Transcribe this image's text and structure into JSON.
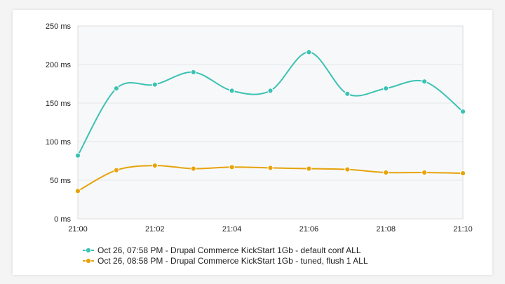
{
  "chart_data": {
    "type": "line",
    "title": "",
    "xlabel": "",
    "ylabel": "",
    "x": [
      "21:00",
      "21:01",
      "21:02",
      "21:03",
      "21:04",
      "21:05",
      "21:06",
      "21:07",
      "21:08",
      "21:09",
      "21:10"
    ],
    "x_ticks": [
      "21:00",
      "21:02",
      "21:04",
      "21:06",
      "21:08",
      "21:10"
    ],
    "ylim": [
      0,
      250
    ],
    "y_ticks": [
      "0 ms",
      "50 ms",
      "100 ms",
      "150 ms",
      "200 ms",
      "250 ms"
    ],
    "grid": true,
    "legend_position": "bottom",
    "series": [
      {
        "name": "Oct 26, 07:58 PM - Drupal Commerce KickStart 1Gb - default conf ALL",
        "color": "#3cc2b4",
        "values": [
          82,
          169,
          174,
          190,
          166,
          166,
          216,
          162,
          169,
          178,
          139
        ]
      },
      {
        "name": "Oct 26, 08:58 PM - Drupal Commerce KickStart 1Gb - tuned, flush 1 ALL",
        "color": "#e6a30b",
        "values": [
          36,
          63,
          69,
          65,
          67,
          66,
          65,
          64,
          60,
          60,
          59
        ]
      }
    ]
  }
}
